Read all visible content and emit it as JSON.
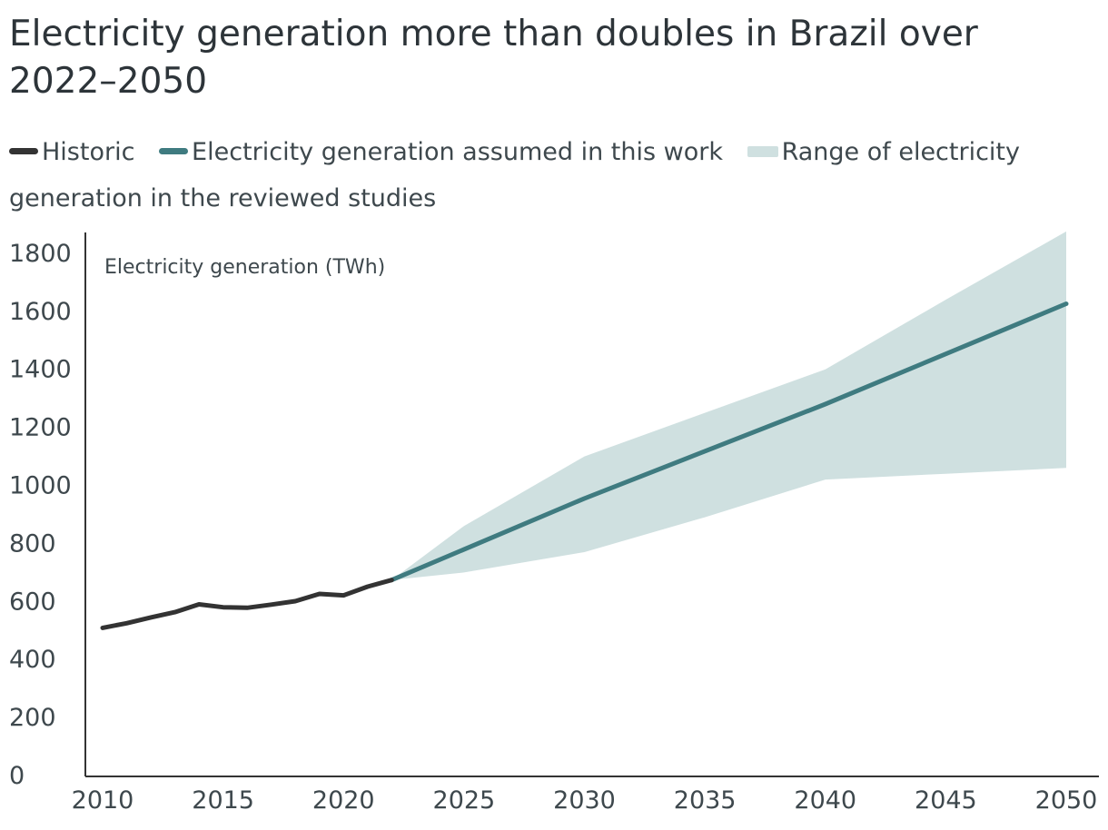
{
  "chart_data": {
    "type": "line",
    "title": "Electricity generation more than doubles in Brazil over 2022–2050",
    "ylabel": "Electricity generation (TWh)",
    "xlabel": "",
    "xlim": [
      2010,
      2050
    ],
    "ylim": [
      0,
      1850
    ],
    "x_ticks": [
      2010,
      2015,
      2020,
      2025,
      2030,
      2035,
      2040,
      2045,
      2050
    ],
    "y_ticks": [
      0,
      200,
      400,
      600,
      800,
      1000,
      1200,
      1400,
      1600,
      1800
    ],
    "legend": [
      {
        "label": "Historic",
        "color": "#333333",
        "kind": "line"
      },
      {
        "label": "Electricity generation assumed in this work",
        "color": "#3f7b80",
        "kind": "line"
      },
      {
        "label": "Range of electricity generation in the reviewed studies",
        "color": "#cfe0e0",
        "kind": "band"
      }
    ],
    "series": [
      {
        "name": "Historic",
        "color": "#333333",
        "x": [
          2010,
          2011,
          2012,
          2013,
          2014,
          2015,
          2016,
          2017,
          2018,
          2019,
          2020,
          2021,
          2022
        ],
        "y": [
          509,
          525,
          545,
          563,
          590,
          580,
          578,
          589,
          601,
          626,
          621,
          651,
          674
        ]
      },
      {
        "name": "Electricity generation assumed in this work",
        "color": "#3f7b80",
        "x": [
          2022,
          2030,
          2040,
          2050
        ],
        "y": [
          674,
          955,
          1280,
          1626
        ]
      }
    ],
    "range_band": {
      "name": "Range of electricity generation in the reviewed studies",
      "color": "#cfe0e0",
      "x": [
        2022,
        2025,
        2030,
        2035,
        2040,
        2045,
        2050
      ],
      "upper": [
        674,
        860,
        1100,
        1250,
        1400,
        1640,
        1875
      ],
      "lower": [
        674,
        700,
        770,
        890,
        1020,
        1040,
        1060
      ]
    }
  }
}
